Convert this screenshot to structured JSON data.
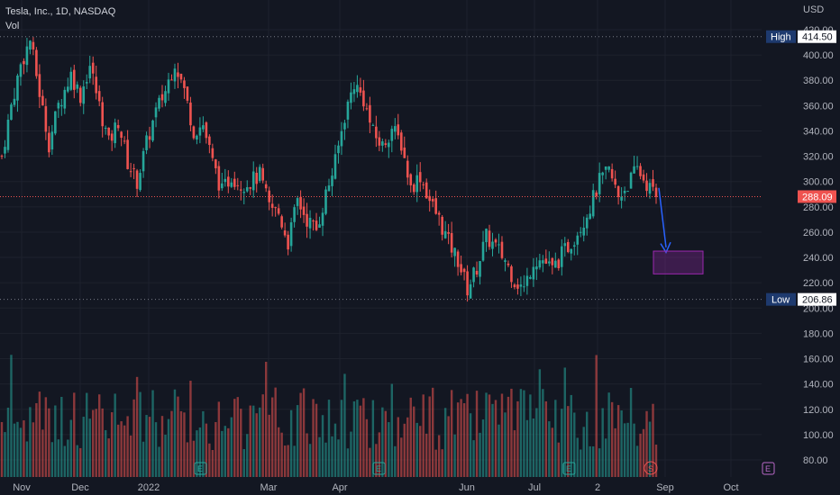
{
  "legend": {
    "symbol_line": "Tesla, Inc., 1D, NASDAQ",
    "volume_label": "Vol"
  },
  "colors": {
    "background": "#131722",
    "up": "#26a69a",
    "down": "#ef5350",
    "grid": "#1e222d",
    "text": "#b2b5be",
    "arrow": "#2962ff",
    "box": "#9c27b0"
  },
  "chart_data": {
    "type": "candlestick",
    "currency_label": "USD",
    "y_axis_ticks": [
      "420.00",
      "400.00",
      "380.00",
      "360.00",
      "340.00",
      "320.00",
      "300.00",
      "280.00",
      "260.00",
      "240.00",
      "220.00",
      "200.00",
      "180.00",
      "160.00",
      "140.00",
      "120.00",
      "100.00",
      "80.00"
    ],
    "y_axis_values": [
      420,
      400,
      380,
      360,
      340,
      320,
      300,
      280,
      260,
      240,
      220,
      200,
      180,
      160,
      140,
      120,
      100,
      80
    ],
    "y_range": [
      75,
      425
    ],
    "x_axis_labels": [
      "Nov",
      "Dec",
      "2022",
      "Mar",
      "Apr",
      "Jun",
      "Jul",
      "2",
      "Sep",
      "Oct"
    ],
    "high": {
      "label": "High",
      "value": "414.50"
    },
    "low": {
      "label": "Low",
      "value": "206.86"
    },
    "last_price": "288.09",
    "earnings_markers": [
      "E",
      "E",
      "E",
      "E"
    ],
    "split_marker": "S",
    "price_path": [
      [
        0,
        320
      ],
      [
        3,
        360
      ],
      [
        6,
        392
      ],
      [
        9,
        412
      ],
      [
        12,
        370
      ],
      [
        15,
        330
      ],
      [
        18,
        360
      ],
      [
        22,
        385
      ],
      [
        25,
        368
      ],
      [
        28,
        392
      ],
      [
        31,
        360
      ],
      [
        34,
        330
      ],
      [
        37,
        348
      ],
      [
        40,
        315
      ],
      [
        43,
        300
      ],
      [
        46,
        330
      ],
      [
        49,
        355
      ],
      [
        52,
        372
      ],
      [
        55,
        395
      ],
      [
        58,
        372
      ],
      [
        61,
        340
      ],
      [
        64,
        345
      ],
      [
        67,
        315
      ],
      [
        70,
        292
      ],
      [
        73,
        305
      ],
      [
        76,
        298
      ],
      [
        79,
        300
      ],
      [
        82,
        305
      ],
      [
        85,
        280
      ],
      [
        88,
        275
      ],
      [
        91,
        252
      ],
      [
        94,
        285
      ],
      [
        97,
        270
      ],
      [
        100,
        262
      ],
      [
        103,
        290
      ],
      [
        106,
        315
      ],
      [
        109,
        352
      ],
      [
        112,
        378
      ],
      [
        115,
        365
      ],
      [
        118,
        338
      ],
      [
        121,
        328
      ],
      [
        124,
        342
      ],
      [
        127,
        330
      ],
      [
        130,
        295
      ],
      [
        133,
        305
      ],
      [
        136,
        285
      ],
      [
        139,
        270
      ],
      [
        142,
        252
      ],
      [
        145,
        238
      ],
      [
        148,
        215
      ],
      [
        151,
        232
      ],
      [
        154,
        256
      ],
      [
        157,
        248
      ],
      [
        160,
        238
      ],
      [
        163,
        222
      ],
      [
        166,
        215
      ],
      [
        169,
        238
      ],
      [
        172,
        238
      ],
      [
        175,
        230
      ],
      [
        178,
        242
      ],
      [
        181,
        252
      ],
      [
        184,
        265
      ],
      [
        187,
        280
      ],
      [
        190,
        300
      ],
      [
        193,
        308
      ],
      [
        196,
        288
      ],
      [
        199,
        298
      ],
      [
        202,
        310
      ],
      [
        205,
        298
      ],
      [
        208,
        288
      ]
    ],
    "volume_level": 0.5,
    "projection": {
      "target_low": 227,
      "target_high": 245
    }
  }
}
